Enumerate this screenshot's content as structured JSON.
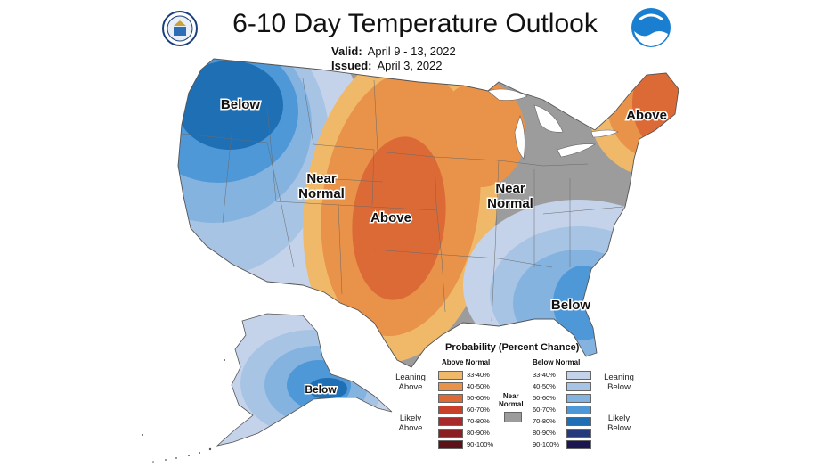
{
  "header": {
    "title": "6-10 Day Temperature Outlook",
    "valid_label": "Valid:",
    "valid_value": "April 9 - 13, 2022",
    "issued_label": "Issued:",
    "issued_value": "April 3, 2022"
  },
  "logos": {
    "left": "commerce-seal-icon",
    "right": "noaa-logo-icon"
  },
  "regions": {
    "northwest": "Below",
    "west_near": [
      "Near",
      "Normal"
    ],
    "plains": "Above",
    "east_near": [
      "Near",
      "Normal"
    ],
    "northeast": "Above",
    "southeast": "Below",
    "alaska": "Below"
  },
  "legend": {
    "title": "Probability (Percent Chance)",
    "above_header": "Above Normal",
    "below_header": "Below Normal",
    "near_label": [
      "Near",
      "Normal"
    ],
    "leaning_above": [
      "Leaning",
      "Above"
    ],
    "likely_above": [
      "Likely",
      "Above"
    ],
    "leaning_below": [
      "Leaning",
      "Below"
    ],
    "likely_below": [
      "Likely",
      "Below"
    ],
    "ranges": [
      "33-40%",
      "40-50%",
      "50-60%",
      "60-70%",
      "70-80%",
      "80-90%",
      "90-100%"
    ],
    "above_colors": [
      "#f0b96a",
      "#e8924a",
      "#dc6a36",
      "#c8402a",
      "#a82a2a",
      "#8a2024",
      "#5c1018"
    ],
    "below_colors": [
      "#c5d3ea",
      "#a8c4e4",
      "#85b3e0",
      "#4f98d8",
      "#1f6fb5",
      "#243a7a",
      "#1c1650"
    ],
    "near_color": "#9c9c9c"
  }
}
